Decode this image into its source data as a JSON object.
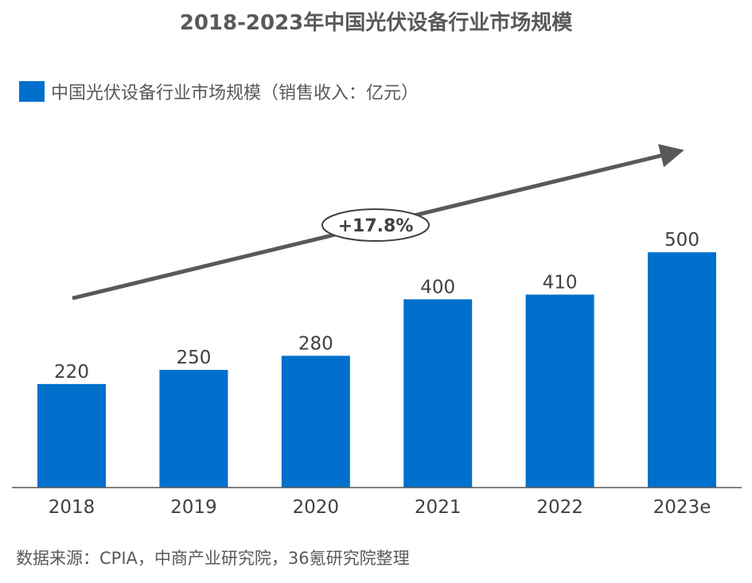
{
  "chart_data": {
    "type": "bar",
    "title": "2018-2023年中国光伏设备行业市场规模",
    "categories": [
      "2018",
      "2019",
      "2020",
      "2021",
      "2022",
      "2023e"
    ],
    "series": [
      {
        "name": "中国光伏设备行业市场规模（销售收入：亿元）",
        "values": [
          220,
          250,
          280,
          400,
          410,
          500
        ]
      }
    ],
    "ylim": [
      0,
      600
    ],
    "grid": false,
    "legend_position": "top-left",
    "annotation": "+17.8%",
    "bar_color": "#0070CC"
  },
  "source": "数据来源：CPIA，中商产业研究院，36氪研究院整理",
  "colors": {
    "bar": "#0070CC",
    "arrow": "#595959",
    "axis": "#595959"
  }
}
